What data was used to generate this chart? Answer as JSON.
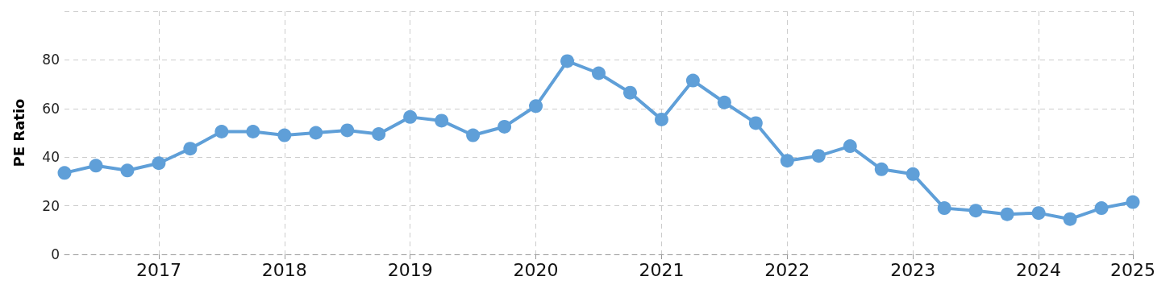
{
  "chart_data": {
    "type": "line",
    "ylabel": "PE Ratio",
    "categories": [
      null,
      null,
      null,
      "2017",
      null,
      null,
      null,
      "2018",
      null,
      null,
      null,
      "2019",
      null,
      null,
      null,
      "2020",
      null,
      null,
      null,
      "2021",
      null,
      null,
      null,
      "2022",
      null,
      null,
      null,
      "2023",
      null,
      null,
      null,
      "2024",
      null,
      null,
      "2025"
    ],
    "series": [
      {
        "color": "#5f9fd8",
        "values": [
          33.5,
          36.5,
          34.5,
          37.5,
          43.5,
          50.5,
          50.5,
          49,
          50,
          51,
          49.5,
          56.5,
          55,
          49,
          52.5,
          61,
          79.5,
          74.5,
          66.5,
          55.5,
          71.5,
          62.5,
          54,
          38.5,
          40.5,
          44.5,
          35,
          33,
          19,
          18,
          16.5,
          17,
          14.5,
          19,
          21.5
        ]
      }
    ],
    "ylim": [
      0,
      100
    ],
    "yticks": [
      0,
      20,
      40,
      60,
      80,
      {
        "value": 100,
        "label": null
      }
    ],
    "grid": true,
    "marker": "circle",
    "line_style": "solid"
  }
}
